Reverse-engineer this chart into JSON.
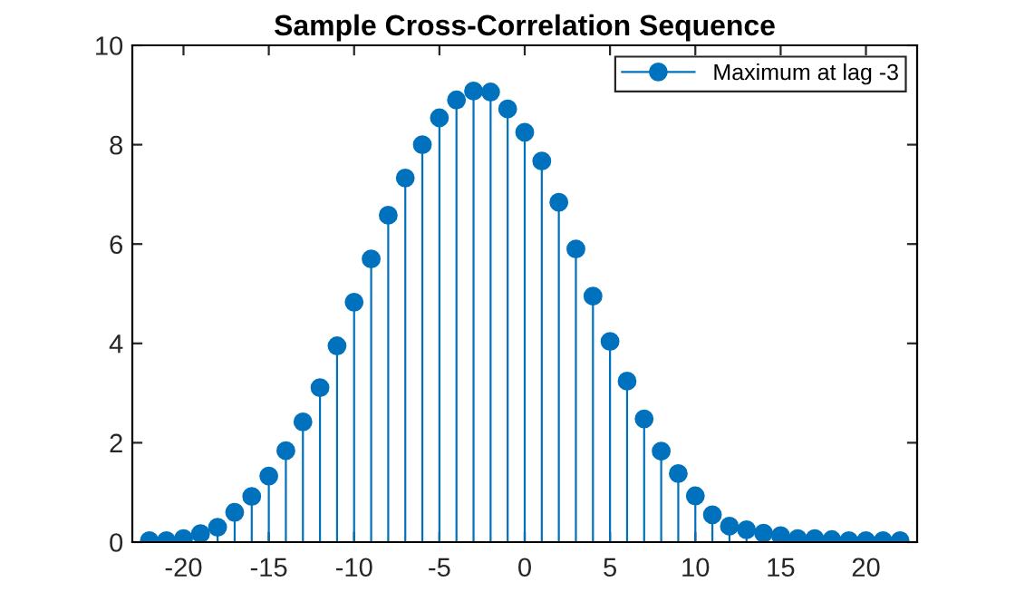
{
  "chart_data": {
    "type": "lollipop",
    "title": "Sample Cross-Correlation Sequence",
    "x": [
      -22,
      -21,
      -20,
      -19,
      -18,
      -17,
      -16,
      -15,
      -14,
      -13,
      -12,
      -11,
      -10,
      -9,
      -8,
      -7,
      -6,
      -5,
      -4,
      -3,
      -2,
      -1,
      0,
      1,
      2,
      3,
      4,
      5,
      6,
      7,
      8,
      9,
      10,
      11,
      12,
      13,
      14,
      15,
      16,
      17,
      18,
      19,
      20,
      21,
      22
    ],
    "series": [
      {
        "name": "Maximum at lag -3",
        "color": "#0072bd",
        "values": [
          0.03,
          0.03,
          0.07,
          0.17,
          0.3,
          0.6,
          0.92,
          1.33,
          1.84,
          2.42,
          3.11,
          3.95,
          4.83,
          5.7,
          6.58,
          7.33,
          8.0,
          8.54,
          8.9,
          9.08,
          9.06,
          8.72,
          8.25,
          7.67,
          6.84,
          5.9,
          4.95,
          4.04,
          3.24,
          2.48,
          1.83,
          1.38,
          0.93,
          0.55,
          0.32,
          0.25,
          0.18,
          0.13,
          0.07,
          0.07,
          0.05,
          0.03,
          0.03,
          0.03,
          0.03
        ]
      }
    ],
    "xlim": [
      -23,
      23
    ],
    "xticks": [
      -20,
      -15,
      -10,
      -5,
      0,
      5,
      10,
      15,
      20
    ],
    "ylim": [
      0,
      10
    ],
    "yticks": [
      0,
      2,
      4,
      6,
      8,
      10
    ],
    "marker": "circle",
    "legend": "top right"
  }
}
